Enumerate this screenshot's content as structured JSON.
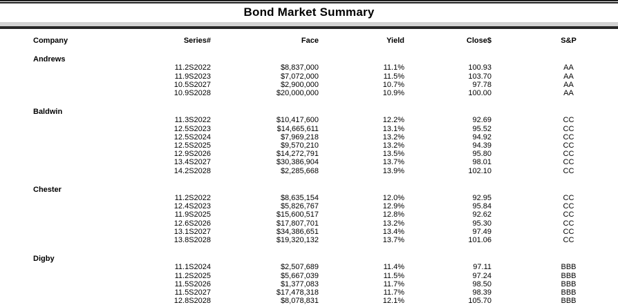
{
  "title": "Bond Market Summary",
  "columns": [
    "Company",
    "Series#",
    "Face",
    "Yield",
    "Close$",
    "S&P"
  ],
  "companies": [
    {
      "name": "Andrews",
      "bonds": [
        {
          "series": "11.2S2022",
          "face": "$8,837,000",
          "yield": "11.1%",
          "close": "100.93",
          "sp": "AA"
        },
        {
          "series": "11.9S2023",
          "face": "$7,072,000",
          "yield": "11.5%",
          "close": "103.70",
          "sp": "AA"
        },
        {
          "series": "10.5S2027",
          "face": "$2,900,000",
          "yield": "10.7%",
          "close": "97.78",
          "sp": "AA"
        },
        {
          "series": "10.9S2028",
          "face": "$20,000,000",
          "yield": "10.9%",
          "close": "100.00",
          "sp": "AA"
        }
      ]
    },
    {
      "name": "Baldwin",
      "bonds": [
        {
          "series": "11.3S2022",
          "face": "$10,417,600",
          "yield": "12.2%",
          "close": "92.69",
          "sp": "CC"
        },
        {
          "series": "12.5S2023",
          "face": "$14,665,611",
          "yield": "13.1%",
          "close": "95.52",
          "sp": "CC"
        },
        {
          "series": "12.5S2024",
          "face": "$7,969,218",
          "yield": "13.2%",
          "close": "94.92",
          "sp": "CC"
        },
        {
          "series": "12.5S2025",
          "face": "$9,570,210",
          "yield": "13.2%",
          "close": "94.39",
          "sp": "CC"
        },
        {
          "series": "12.9S2026",
          "face": "$14,272,791",
          "yield": "13.5%",
          "close": "95.80",
          "sp": "CC"
        },
        {
          "series": "13.4S2027",
          "face": "$30,386,904",
          "yield": "13.7%",
          "close": "98.01",
          "sp": "CC"
        },
        {
          "series": "14.2S2028",
          "face": "$2,285,668",
          "yield": "13.9%",
          "close": "102.10",
          "sp": "CC"
        }
      ]
    },
    {
      "name": "Chester",
      "bonds": [
        {
          "series": "11.2S2022",
          "face": "$8,635,154",
          "yield": "12.0%",
          "close": "92.95",
          "sp": "CC"
        },
        {
          "series": "12.4S2023",
          "face": "$5,826,767",
          "yield": "12.9%",
          "close": "95.84",
          "sp": "CC"
        },
        {
          "series": "11.9S2025",
          "face": "$15,600,517",
          "yield": "12.8%",
          "close": "92.62",
          "sp": "CC"
        },
        {
          "series": "12.6S2026",
          "face": "$17,807,701",
          "yield": "13.2%",
          "close": "95.30",
          "sp": "CC"
        },
        {
          "series": "13.1S2027",
          "face": "$34,386,651",
          "yield": "13.4%",
          "close": "97.49",
          "sp": "CC"
        },
        {
          "series": "13.8S2028",
          "face": "$19,320,132",
          "yield": "13.7%",
          "close": "101.06",
          "sp": "CC"
        }
      ]
    },
    {
      "name": "Digby",
      "bonds": [
        {
          "series": "11.1S2024",
          "face": "$2,507,689",
          "yield": "11.4%",
          "close": "97.11",
          "sp": "BBB"
        },
        {
          "series": "11.2S2025",
          "face": "$5,667,039",
          "yield": "11.5%",
          "close": "97.24",
          "sp": "BBB"
        },
        {
          "series": "11.5S2026",
          "face": "$1,377,083",
          "yield": "11.7%",
          "close": "98.50",
          "sp": "BBB"
        },
        {
          "series": "11.5S2027",
          "face": "$17,478,318",
          "yield": "11.7%",
          "close": "98.39",
          "sp": "BBB"
        },
        {
          "series": "12.8S2028",
          "face": "$8,078,831",
          "yield": "12.1%",
          "close": "105.70",
          "sp": "BBB"
        }
      ]
    }
  ]
}
